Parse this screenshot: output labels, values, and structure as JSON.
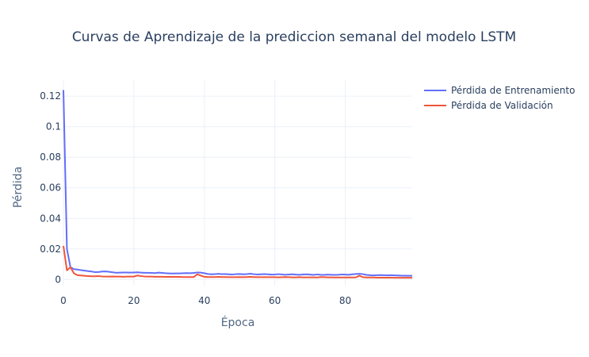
{
  "chart_data": {
    "type": "line",
    "title": "Curvas de Aprendizaje de la prediccion semanal del modelo LSTM",
    "xlabel": "Época",
    "ylabel": "Pérdida",
    "xlim": [
      0,
      99
    ],
    "ylim": [
      -0.004,
      0.131
    ],
    "x_ticks": [
      0,
      20,
      40,
      60,
      80
    ],
    "x_tick_labels": [
      "0",
      "20",
      "40",
      "60",
      "80"
    ],
    "y_ticks": [
      0,
      0.02,
      0.04,
      0.06,
      0.08,
      0.1,
      0.12
    ],
    "y_tick_labels": [
      "0",
      "0.02",
      "0.04",
      "0.06",
      "0.08",
      "0.1",
      "0.12"
    ],
    "grid": true,
    "legend_position": "top-right",
    "series": [
      {
        "name": "Pérdida de Entrenamiento",
        "color": "#636efa",
        "values": [
          0.124,
          0.02,
          0.008,
          0.0068,
          0.0065,
          0.0061,
          0.0058,
          0.0055,
          0.0052,
          0.0048,
          0.0049,
          0.0052,
          0.0053,
          0.005,
          0.0047,
          0.0044,
          0.0045,
          0.0046,
          0.0046,
          0.0045,
          0.0046,
          0.0047,
          0.0045,
          0.0044,
          0.0044,
          0.0043,
          0.0042,
          0.0045,
          0.0043,
          0.0041,
          0.004,
          0.0039,
          0.004,
          0.004,
          0.0041,
          0.0042,
          0.0041,
          0.0043,
          0.0046,
          0.0045,
          0.0041,
          0.0036,
          0.0034,
          0.0035,
          0.0037,
          0.0035,
          0.0035,
          0.0034,
          0.0033,
          0.0035,
          0.0036,
          0.0034,
          0.0035,
          0.0038,
          0.0035,
          0.0033,
          0.0034,
          0.0035,
          0.0034,
          0.0032,
          0.0033,
          0.0035,
          0.0033,
          0.0031,
          0.0033,
          0.0034,
          0.0032,
          0.0031,
          0.0033,
          0.0034,
          0.0032,
          0.003,
          0.0033,
          0.0031,
          0.003,
          0.0032,
          0.0031,
          0.003,
          0.0031,
          0.0033,
          0.0032,
          0.0031,
          0.0034,
          0.0036,
          0.0037,
          0.0035,
          0.003,
          0.0028,
          0.0027,
          0.0028,
          0.0029,
          0.0028,
          0.0027,
          0.0028,
          0.0027,
          0.0026,
          0.0025,
          0.0025,
          0.0024,
          0.0025
        ]
      },
      {
        "name": "Pérdida de Validación",
        "color": "#ef553b",
        "values": [
          0.022,
          0.006,
          0.008,
          0.004,
          0.0028,
          0.0026,
          0.0024,
          0.0022,
          0.0021,
          0.0021,
          0.0022,
          0.002,
          0.0019,
          0.0019,
          0.002,
          0.0019,
          0.0019,
          0.0018,
          0.0019,
          0.0019,
          0.0019,
          0.0026,
          0.0022,
          0.002,
          0.0019,
          0.0019,
          0.0018,
          0.0018,
          0.0018,
          0.0017,
          0.0018,
          0.0017,
          0.0017,
          0.0017,
          0.0016,
          0.0016,
          0.0016,
          0.0016,
          0.0034,
          0.0025,
          0.0018,
          0.0016,
          0.0016,
          0.0016,
          0.0017,
          0.0016,
          0.0016,
          0.0015,
          0.0015,
          0.0015,
          0.0016,
          0.0015,
          0.0016,
          0.0017,
          0.0016,
          0.0015,
          0.0015,
          0.0015,
          0.0015,
          0.0015,
          0.0015,
          0.0014,
          0.0015,
          0.0016,
          0.0015,
          0.0014,
          0.0014,
          0.0015,
          0.0014,
          0.0014,
          0.0014,
          0.0014,
          0.0013,
          0.0016,
          0.0015,
          0.0014,
          0.0014,
          0.0013,
          0.0013,
          0.0013,
          0.0013,
          0.0013,
          0.0013,
          0.0014,
          0.0025,
          0.0015,
          0.0013,
          0.0013,
          0.0013,
          0.0012,
          0.0012,
          0.0012,
          0.0012,
          0.0012,
          0.0011,
          0.0011,
          0.0011,
          0.0011,
          0.0011,
          0.0011
        ]
      }
    ]
  }
}
